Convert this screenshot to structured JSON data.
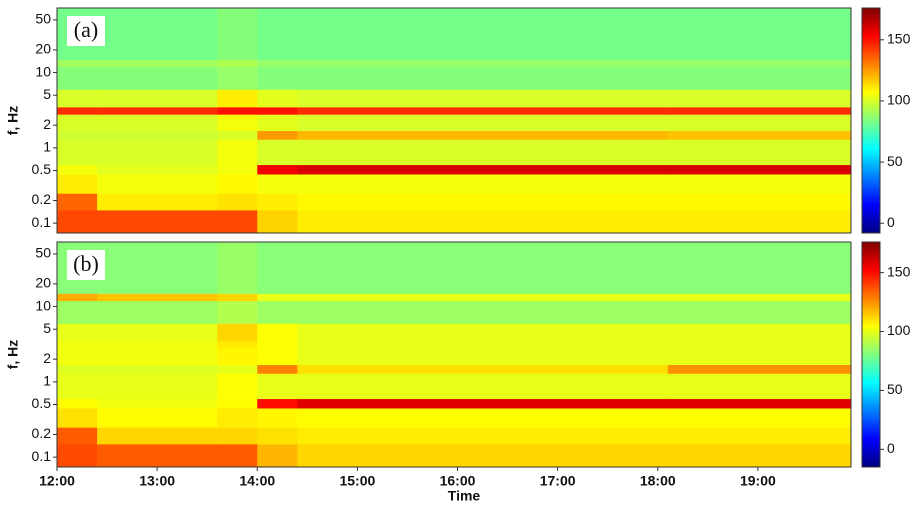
{
  "chart_data": [
    {
      "type": "heatmap",
      "panel_label": "(a)",
      "ylabel": "f, Hz",
      "log_y": true,
      "colormap": "jet",
      "xlim": [
        12,
        19.93
      ],
      "ylim": [
        0.074,
        72
      ],
      "yticks": [
        0.1,
        0.2,
        0.5,
        1,
        2,
        5,
        10,
        20,
        50
      ],
      "clim": [
        -8,
        176
      ],
      "cticks": [
        0,
        50,
        100,
        150
      ],
      "x": [
        12,
        12.4,
        13.6,
        14.0,
        14.4,
        18.1,
        19.93
      ],
      "y": [
        0.074,
        0.15,
        0.25,
        0.45,
        0.6,
        1.3,
        1.7,
        2.8,
        3.5,
        6,
        12,
        15,
        72
      ],
      "values": [
        [
          140,
          140,
          140,
          115,
          110,
          110
        ],
        [
          135,
          110,
          112,
          110,
          108,
          108
        ],
        [
          110,
          105,
          108,
          105,
          105,
          105
        ],
        [
          105,
          102,
          105,
          155,
          160,
          160
        ],
        [
          100,
          100,
          105,
          100,
          100,
          100
        ],
        [
          98,
          98,
          100,
          125,
          120,
          118
        ],
        [
          100,
          100,
          105,
          102,
          100,
          100
        ],
        [
          145,
          145,
          150,
          150,
          145,
          145
        ],
        [
          100,
          100,
          110,
          102,
          100,
          100
        ],
        [
          85,
          85,
          88,
          85,
          85,
          85
        ],
        [
          90,
          90,
          92,
          88,
          88,
          88
        ],
        [
          82,
          82,
          85,
          82,
          82,
          82
        ]
      ]
    },
    {
      "type": "heatmap",
      "panel_label": "(b)",
      "ylabel": "f, Hz",
      "xlabel": "Time",
      "log_y": true,
      "colormap": "jet",
      "xlim": [
        12,
        19.93
      ],
      "ylim": [
        0.074,
        72
      ],
      "yticks": [
        0.1,
        0.2,
        0.5,
        1,
        2,
        5,
        10,
        20,
        50
      ],
      "xticks": [
        {
          "value": 12,
          "label": "12:00"
        },
        {
          "value": 13,
          "label": "13:00"
        },
        {
          "value": 14,
          "label": "14:00"
        },
        {
          "value": 15,
          "label": "15:00"
        },
        {
          "value": 16,
          "label": "16:00"
        },
        {
          "value": 17,
          "label": "17:00"
        },
        {
          "value": 18,
          "label": "18:00"
        },
        {
          "value": 19,
          "label": "19:00"
        }
      ],
      "clim": [
        -15,
        176
      ],
      "cticks": [
        0,
        50,
        100,
        150
      ],
      "x": [
        12,
        12.4,
        13.6,
        14.0,
        14.4,
        18.1,
        19.93
      ],
      "y": [
        0.074,
        0.15,
        0.25,
        0.45,
        0.6,
        1.3,
        1.7,
        2.8,
        3.5,
        6,
        12,
        15,
        72
      ],
      "values": [
        [
          138,
          135,
          135,
          118,
          112,
          112
        ],
        [
          135,
          112,
          112,
          110,
          108,
          108
        ],
        [
          110,
          105,
          108,
          106,
          105,
          105
        ],
        [
          105,
          102,
          105,
          150,
          158,
          158
        ],
        [
          100,
          100,
          104,
          100,
          100,
          100
        ],
        [
          98,
          98,
          100,
          128,
          110,
          125
        ],
        [
          102,
          102,
          106,
          104,
          100,
          100
        ],
        [
          102,
          102,
          108,
          104,
          100,
          100
        ],
        [
          100,
          100,
          112,
          104,
          100,
          100
        ],
        [
          86,
          86,
          90,
          86,
          86,
          86
        ],
        [
          120,
          115,
          112,
          100,
          100,
          100
        ],
        [
          82,
          82,
          85,
          82,
          82,
          82
        ]
      ]
    }
  ]
}
